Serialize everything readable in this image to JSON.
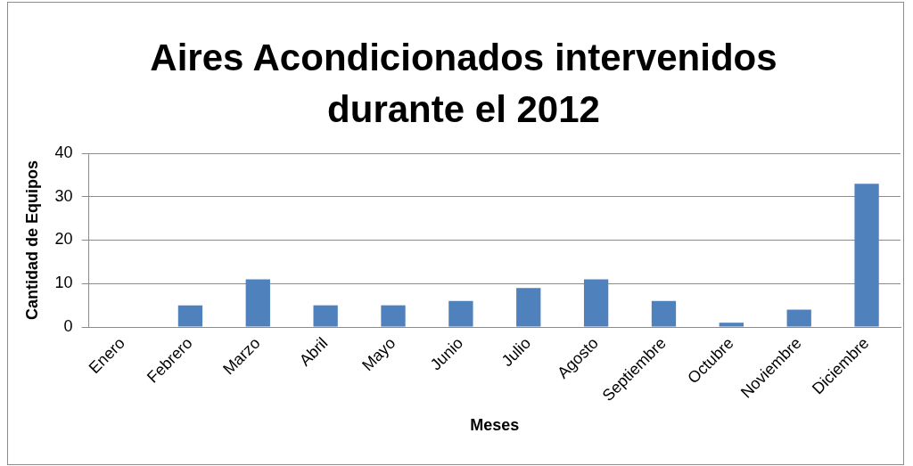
{
  "chart_data": {
    "type": "bar",
    "title": "Aires Acondicionados intervenidos durante el 2012",
    "xlabel": "Meses",
    "ylabel": "Cantidad de Equipos",
    "categories": [
      "Enero",
      "Febrero",
      "Marzo",
      "Abril",
      "Mayo",
      "Junio",
      "Julio",
      "Agosto",
      "Septiembre",
      "Octubre",
      "Noviembre",
      "Diciembre"
    ],
    "values": [
      0,
      5,
      11,
      5,
      5,
      6,
      9,
      11,
      6,
      1,
      4,
      33
    ],
    "color": "#4f81bd",
    "ylim": [
      0,
      40
    ],
    "yticks": [
      0,
      10,
      20,
      30,
      40
    ],
    "grid": "y",
    "legend": false
  }
}
